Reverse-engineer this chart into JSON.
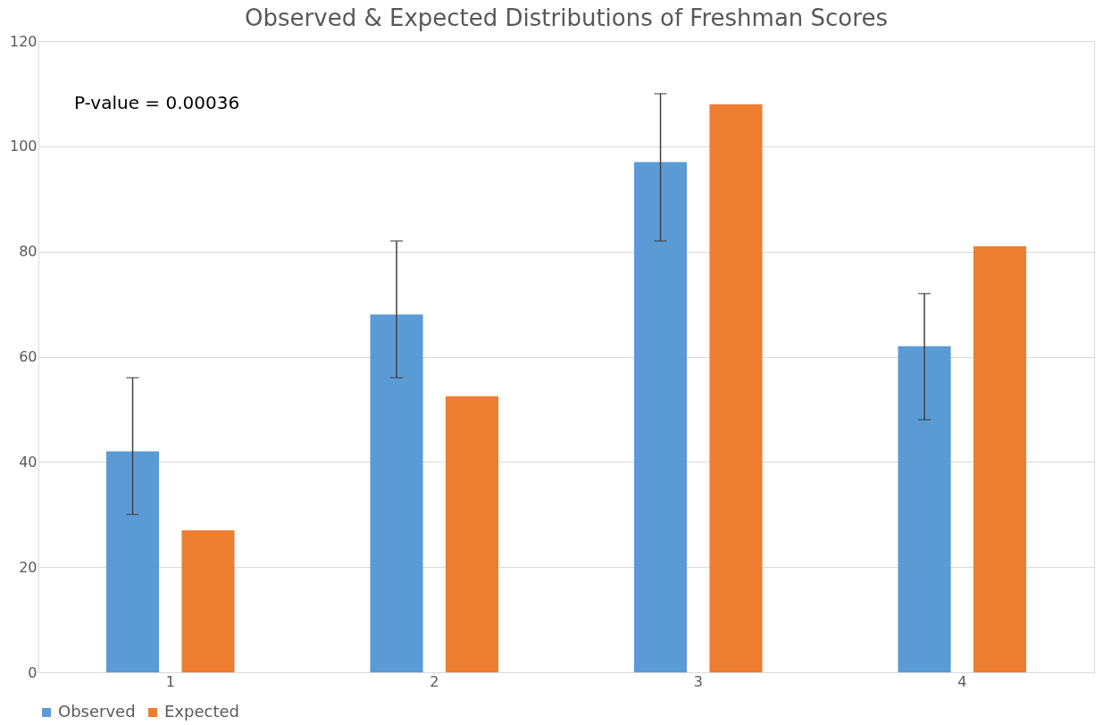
{
  "chart_data": {
    "type": "bar",
    "title": "Observed & Expected Distributions of Freshman Scores",
    "categories": [
      "1",
      "2",
      "3",
      "4"
    ],
    "series": [
      {
        "name": "Observed",
        "color": "#5b9bd5",
        "values": [
          42,
          68,
          97,
          62
        ],
        "errors": [
          [
            30,
            56
          ],
          [
            56,
            82
          ],
          [
            82,
            110
          ],
          [
            48,
            72
          ]
        ]
      },
      {
        "name": "Expected",
        "color": "#ed7d31",
        "values": [
          27,
          52.5,
          108,
          81
        ]
      }
    ],
    "ylim": [
      0,
      120
    ],
    "yticks": [
      0,
      20,
      40,
      60,
      80,
      100,
      120
    ],
    "grid": "y",
    "legend": "bottom",
    "annotations": [
      "P-value = 0.00036"
    ]
  }
}
